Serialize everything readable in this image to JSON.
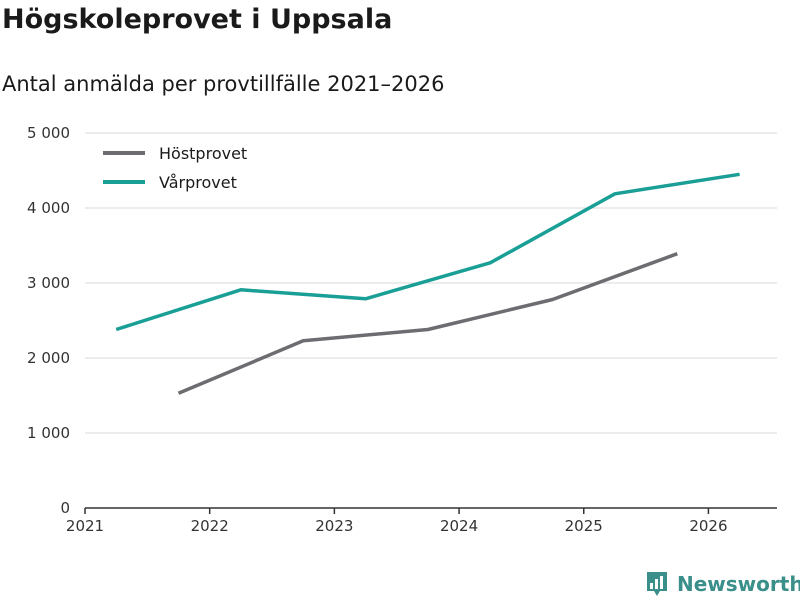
{
  "colors": {
    "hostprovet": "#6d6c70",
    "varprovet": "#1a9f96",
    "brand": "#3a8f8a"
  },
  "brand": {
    "name": "Newsworthy",
    "icon": "bar-chart-speech-icon"
  },
  "chart_data": {
    "type": "line",
    "title": "Högskoleprovet i Uppsala",
    "subtitle": "Antal anmälda per provtillfälle 2021–2026",
    "xlabel": "",
    "ylabel": "",
    "xlim": [
      2021,
      2026.55
    ],
    "ylim": [
      0,
      5000
    ],
    "y_ticks": [
      0,
      1000,
      2000,
      3000,
      4000,
      5000
    ],
    "y_tick_labels": [
      "0",
      "1 000",
      "2 000",
      "3 000",
      "4 000",
      "5 000"
    ],
    "x_ticks": [
      2021,
      2022,
      2023,
      2024,
      2025,
      2026
    ],
    "x_tick_labels": [
      "2021",
      "2022",
      "2023",
      "2024",
      "2025",
      "2026"
    ],
    "grid": true,
    "legend_position": "top-left",
    "series": [
      {
        "name": "Höstprovet",
        "x": [
          2021.75,
          2022.75,
          2023.75,
          2024.75,
          2025.75
        ],
        "values": [
          1530,
          2230,
          2380,
          2780,
          3390
        ]
      },
      {
        "name": "Vårprovet",
        "x": [
          2021.25,
          2022.25,
          2023.25,
          2024.25,
          2025.25,
          2026.25
        ],
        "values": [
          2380,
          2910,
          2790,
          3270,
          4190,
          4450
        ]
      }
    ]
  }
}
